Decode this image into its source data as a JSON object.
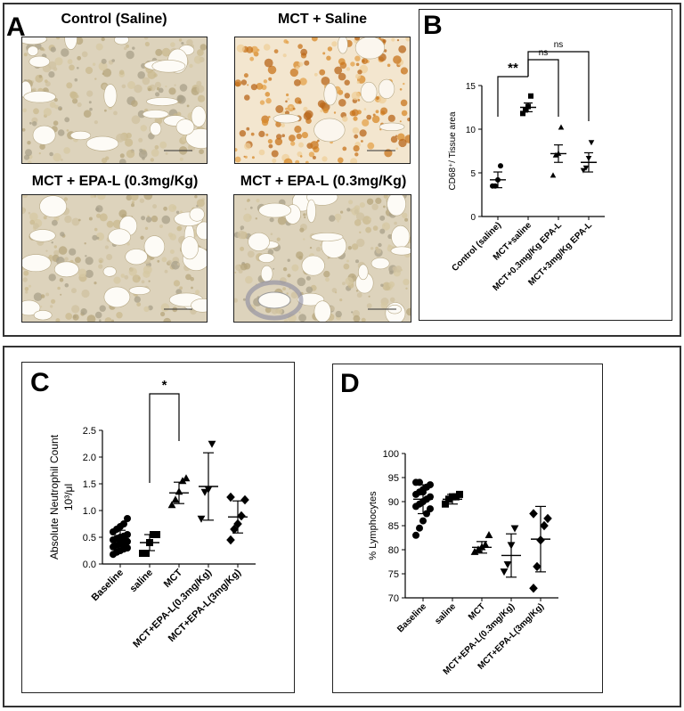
{
  "panels": {
    "a": {
      "letter": "A",
      "images": [
        {
          "title": "Control (Saline)",
          "stain": "light"
        },
        {
          "title": "MCT + Saline",
          "stain": "heavy"
        },
        {
          "title": "MCT + EPA-L (0.3mg/Kg)",
          "stain": "light"
        },
        {
          "title": "MCT + EPA-L (0.3mg/Kg)",
          "stain": "light"
        }
      ]
    },
    "b": {
      "letter": "B"
    },
    "c": {
      "letter": "C"
    },
    "d": {
      "letter": "D"
    }
  },
  "chart_data": [
    {
      "panel": "B",
      "type": "scatter",
      "ylabel": "CD68⁺/ Tissue area",
      "ylim": [
        0,
        15
      ],
      "yticks": [
        0,
        5,
        10,
        15
      ],
      "categories": [
        "Control (saline)",
        "MCT+saline",
        "MCT+0.3mg/Kg EPA-L",
        "MCT+3mg/Kg EPA-L"
      ],
      "markers": [
        "circle",
        "square",
        "triangle-up",
        "triangle-down"
      ],
      "points": [
        [
          3.5,
          3.5,
          4.2,
          5.8
        ],
        [
          11.8,
          12.2,
          12.6,
          13.8
        ],
        [
          4.7,
          7.0,
          7.2,
          10.2
        ],
        [
          5.3,
          5.6,
          6.7,
          8.5
        ]
      ],
      "means": [
        4.2,
        12.5,
        7.2,
        6.2
      ],
      "sem": [
        0.9,
        0.5,
        1.0,
        1.1
      ],
      "significance": [
        {
          "from": 0,
          "to": 1,
          "label": "**"
        },
        {
          "from": 1,
          "to": 2,
          "label": "ns"
        },
        {
          "from": 1,
          "to": 3,
          "label": "ns"
        }
      ]
    },
    {
      "panel": "C",
      "type": "scatter",
      "ylabel_line1": "Absolute Neutrophil Count",
      "ylabel_line2": "10³/μl",
      "ylim": [
        0,
        2.5
      ],
      "yticks": [
        "0.0",
        "0.5",
        "1.0",
        "1.5",
        "2.0",
        "2.5"
      ],
      "categories": [
        "Baseline",
        "saline",
        "MCT",
        "MCT+EPA-L(0.3mg/Kg)",
        "MCT+EPA-L(3mg/Kg)"
      ],
      "markers": [
        "circle",
        "square",
        "triangle-up",
        "triangle-down",
        "diamond"
      ],
      "points": [
        [
          0.18,
          0.22,
          0.25,
          0.28,
          0.3,
          0.32,
          0.35,
          0.38,
          0.4,
          0.42,
          0.45,
          0.48,
          0.5,
          0.52,
          0.55,
          0.6,
          0.65,
          0.7,
          0.75,
          0.85
        ],
        [
          0.2,
          0.2,
          0.4,
          0.55,
          0.55
        ],
        [
          1.1,
          1.2,
          1.35,
          1.55,
          1.6
        ],
        [
          0.85,
          1.35,
          1.4,
          2.25
        ],
        [
          0.45,
          0.65,
          0.75,
          0.9,
          1.2,
          1.25
        ]
      ],
      "means": [
        0.45,
        0.4,
        1.33,
        1.45,
        0.88
      ],
      "sd": [
        0.18,
        0.15,
        0.2,
        0.63,
        0.3
      ],
      "significance": [
        {
          "from": 1,
          "to": 2,
          "label": "*"
        }
      ]
    },
    {
      "panel": "D",
      "type": "scatter",
      "ylabel": "% Lymphocytes",
      "ylim": [
        70,
        100
      ],
      "yticks": [
        70,
        75,
        80,
        85,
        90,
        95,
        100
      ],
      "categories": [
        "Baseline",
        "saline",
        "MCT",
        "MCT+EPA-L(0.3mg/Kg)",
        "MCT+EPA-L(3mg/Kg)"
      ],
      "markers": [
        "circle",
        "square",
        "triangle-up",
        "triangle-down",
        "diamond"
      ],
      "points": [
        [
          83,
          84.5,
          86,
          87.5,
          88.5,
          89,
          89.5,
          90,
          90.5,
          91,
          91.5,
          92,
          92.5,
          93,
          93.5,
          94,
          94,
          92
        ],
        [
          89.5,
          90.5,
          91,
          91,
          91.5
        ],
        [
          79.5,
          80,
          80.5,
          81,
          83
        ],
        [
          75.5,
          77,
          81,
          84.5
        ],
        [
          72,
          76.5,
          82,
          85,
          86.5,
          87.5
        ]
      ],
      "means": [
        90.5,
        90.5,
        80.5,
        78.8,
        82.2
      ],
      "sd": [
        3,
        1,
        1.2,
        4.5,
        6.8
      ],
      "significance": []
    }
  ]
}
